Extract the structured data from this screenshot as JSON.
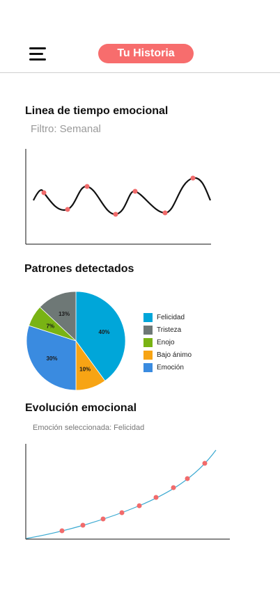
{
  "header": {
    "menu_icon": "hamburger-menu-icon",
    "title": "Tu Historia",
    "accent": "#f76d6d"
  },
  "timeline": {
    "title": "Linea de tiempo emocional",
    "filter": "Filtro: Semanal",
    "line_color": "#111111",
    "point_color": "#f16b6b"
  },
  "patterns": {
    "title": "Patrones detectados",
    "chart_data": {
      "type": "pie",
      "slices": [
        {
          "name": "Felicidad",
          "value": 40,
          "label": "40%",
          "color": "#00a6d9"
        },
        {
          "name": "Bajo ánimo",
          "value": 10,
          "label": "10%",
          "color": "#f7a414"
        },
        {
          "name": "Emoción",
          "value": 30,
          "label": "30%",
          "color": "#3a8be0"
        },
        {
          "name": "Enojo",
          "value": 7,
          "label": "7%",
          "color": "#79b314"
        },
        {
          "name": "Tristeza",
          "value": 13,
          "label": "13%",
          "color": "#6e7876"
        }
      ],
      "legend": [
        {
          "label": "Felicidad",
          "color": "#00a6d9"
        },
        {
          "label": "Tristeza",
          "color": "#6e7876"
        },
        {
          "label": "Enojo",
          "color": "#79b314"
        },
        {
          "label": "Bajo ánimo",
          "color": "#f7a414"
        },
        {
          "label": "Emoción",
          "color": "#3a8be0"
        }
      ],
      "legend_position": "right"
    }
  },
  "evolution": {
    "title": "Evolución emocional",
    "selected": "Emoción seleccionada: Felicidad",
    "line_color": "#3aa9d1",
    "point_color": "#f16b6b"
  }
}
